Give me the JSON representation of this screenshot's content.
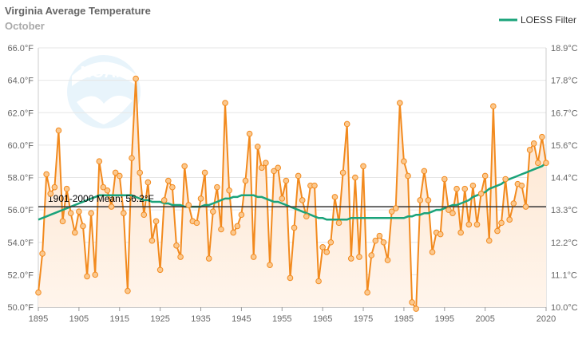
{
  "chart_data": {
    "type": "line",
    "title": "Virginia Average Temperature",
    "subtitle": "October",
    "x": [
      1895,
      1896,
      1897,
      1898,
      1899,
      1900,
      1901,
      1902,
      1903,
      1904,
      1905,
      1906,
      1907,
      1908,
      1909,
      1910,
      1911,
      1912,
      1913,
      1914,
      1915,
      1916,
      1917,
      1918,
      1919,
      1920,
      1921,
      1922,
      1923,
      1924,
      1925,
      1926,
      1927,
      1928,
      1929,
      1930,
      1931,
      1932,
      1933,
      1934,
      1935,
      1936,
      1937,
      1938,
      1939,
      1940,
      1941,
      1942,
      1943,
      1944,
      1945,
      1946,
      1947,
      1948,
      1949,
      1950,
      1951,
      1952,
      1953,
      1954,
      1955,
      1956,
      1957,
      1958,
      1959,
      1960,
      1961,
      1962,
      1963,
      1964,
      1965,
      1966,
      1967,
      1968,
      1969,
      1970,
      1971,
      1972,
      1973,
      1974,
      1975,
      1976,
      1977,
      1978,
      1979,
      1980,
      1981,
      1982,
      1983,
      1984,
      1985,
      1986,
      1987,
      1988,
      1989,
      1990,
      1991,
      1992,
      1993,
      1994,
      1995,
      1996,
      1997,
      1998,
      1999,
      2000,
      2001,
      2002,
      2003,
      2004,
      2005,
      2006,
      2007,
      2008,
      2009,
      2010,
      2011,
      2012,
      2013,
      2014,
      2015,
      2016,
      2017,
      2018,
      2019,
      2020
    ],
    "series": [
      {
        "values": [
          50.9,
          53.3,
          58.2,
          57.0,
          57.4,
          60.9,
          55.3,
          57.3,
          55.8,
          54.6,
          55.9,
          55.0,
          51.9,
          55.8,
          52.0,
          59.0,
          57.4,
          57.2,
          56.2,
          58.3,
          58.1,
          55.8,
          51.0,
          59.2,
          64.1,
          58.3,
          55.7,
          57.7,
          54.1,
          55.3,
          52.3,
          56.6,
          57.8,
          57.4,
          53.8,
          53.1,
          58.7,
          56.3,
          55.3,
          55.2,
          56.7,
          58.3,
          53.0,
          55.9,
          57.4,
          54.8,
          62.6,
          57.2,
          54.6,
          55.0,
          55.7,
          57.8,
          60.7,
          53.1,
          59.9,
          58.6,
          58.9,
          52.6,
          58.4,
          58.6,
          56.7,
          57.8,
          51.8,
          54.9,
          58.1,
          56.6,
          55.6,
          57.5,
          57.5,
          51.6,
          53.7,
          53.4,
          54.0,
          56.8,
          55.2,
          58.3,
          61.3,
          53.0,
          58.0,
          53.1,
          58.7,
          50.9,
          53.2,
          54.1,
          54.4,
          54.0,
          52.9,
          55.9,
          56.1,
          62.6,
          59.0,
          58.1,
          50.3,
          49.9,
          56.6,
          58.4,
          56.6,
          53.4,
          54.6,
          54.5,
          57.9,
          56.0,
          55.8,
          57.3,
          54.6,
          57.3,
          55.1,
          57.5,
          55.1,
          57.0,
          58.1,
          54.1,
          62.4,
          54.7,
          55.2,
          57.9,
          55.4,
          56.4,
          57.6,
          57.5,
          56.2,
          59.7,
          60.1,
          58.9,
          60.5,
          58.9
        ]
      },
      {
        "name": "LOESS Filter",
        "values": [
          55.4,
          55.5,
          55.6,
          55.7,
          55.8,
          55.9,
          56.0,
          56.1,
          56.2,
          56.3,
          56.4,
          56.5,
          56.6,
          56.7,
          56.8,
          56.9,
          56.9,
          56.9,
          56.9,
          56.9,
          56.9,
          56.9,
          56.9,
          56.9,
          56.8,
          56.7,
          56.6,
          56.6,
          56.5,
          56.5,
          56.5,
          56.4,
          56.4,
          56.3,
          56.3,
          56.3,
          56.2,
          56.2,
          56.2,
          56.2,
          56.2,
          56.3,
          56.3,
          56.4,
          56.5,
          56.6,
          56.7,
          56.7,
          56.8,
          56.8,
          56.9,
          56.9,
          56.9,
          56.9,
          56.8,
          56.8,
          56.7,
          56.6,
          56.5,
          56.5,
          56.4,
          56.3,
          56.2,
          56.1,
          56.0,
          55.9,
          55.8,
          55.7,
          55.6,
          55.5,
          55.5,
          55.4,
          55.4,
          55.4,
          55.4,
          55.4,
          55.4,
          55.5,
          55.5,
          55.5,
          55.5,
          55.5,
          55.5,
          55.5,
          55.5,
          55.5,
          55.5,
          55.5,
          55.5,
          55.5,
          55.5,
          55.6,
          55.6,
          55.7,
          55.7,
          55.8,
          55.8,
          55.9,
          56.0,
          56.0,
          56.1,
          56.2,
          56.3,
          56.3,
          56.4,
          56.5,
          56.6,
          56.8,
          56.9,
          57.0,
          57.1,
          57.3,
          57.4,
          57.5,
          57.6,
          57.8,
          57.9,
          58.0,
          58.1,
          58.2,
          58.3,
          58.4,
          58.5,
          58.6,
          58.7,
          58.9
        ]
      }
    ],
    "mean": {
      "value": 56.2,
      "label": "1901-2000 Mean: 56.2°F"
    },
    "ylim": [
      50,
      66
    ],
    "yticks_left": [
      "50.0°F",
      "52.0°F",
      "54.0°F",
      "56.0°F",
      "58.0°F",
      "60.0°F",
      "62.0°F",
      "64.0°F",
      "66.0°F"
    ],
    "yticks_right": [
      "10.0°C",
      "11.1°C",
      "12.2°C",
      "13.3°C",
      "14.4°C",
      "15.6°C",
      "16.7°C",
      "17.8°C",
      "18.9°C"
    ],
    "xticks": [
      "1895",
      "1905",
      "1915",
      "1925",
      "1935",
      "1945",
      "1955",
      "1965",
      "1975",
      "1985",
      "1995",
      "2005",
      "2020"
    ],
    "colors": {
      "data_line": "#f28a1e",
      "marker_fill": "#fbc88e",
      "loess": "#1aa37a",
      "mean_line": "#333333",
      "area_top": "#fde3cb",
      "area_bottom": "#fff5ec"
    },
    "legend": {
      "position": "top-right"
    },
    "watermark_text": "NOAA",
    "grid": true
  }
}
